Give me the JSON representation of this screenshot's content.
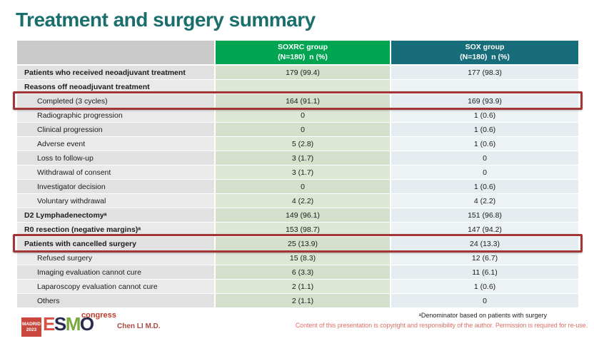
{
  "slide": {
    "title": "Treatment and surgery summary",
    "footer": {
      "presenter": "Chen LI M.D.",
      "footnote": "ᵃDenominator based on patients with surgery",
      "copyright": "Content of this presentation is copyright and responsibility of the author. Permission is required for re-use.",
      "logo": {
        "badge_line1": "MADRID",
        "badge_line2": "2023",
        "letters": [
          "E",
          "S",
          "M",
          "O"
        ],
        "congress": "congress"
      }
    }
  },
  "colors": {
    "title_teal": "#1a6e6b",
    "soxrc_header_green": "#00a551",
    "sox_header_teal": "#186d7b",
    "highlight_red": "#a23636",
    "soxrc_cell_green": "#d4e0cb",
    "sox_cell_blue": "#e5edf0"
  },
  "table": {
    "columns": [
      {
        "line1": "",
        "line2": ""
      },
      {
        "line1": "SOXRC group",
        "line2": "(N=180)  n (%)"
      },
      {
        "line1": "SOX group",
        "line2": "(N=180)  n (%)"
      }
    ],
    "rows": [
      {
        "label": "Patients who received neoadjuvant treatment",
        "soxrc": "179 (99.4)",
        "sox": "177 (98.3)",
        "bold": true,
        "indent": false,
        "highlight": false
      },
      {
        "label": "Reasons off neoadjuvant treatment",
        "soxrc": "",
        "sox": "",
        "bold": true,
        "indent": false,
        "highlight": false
      },
      {
        "label": "Completed (3 cycles)",
        "soxrc": "164 (91.1)",
        "sox": "169 (93.9)",
        "bold": false,
        "indent": true,
        "highlight": true
      },
      {
        "label": "Radiographic progression",
        "soxrc": "0",
        "sox": "1 (0.6)",
        "bold": false,
        "indent": true,
        "highlight": false
      },
      {
        "label": "Clinical progression",
        "soxrc": "0",
        "sox": "1 (0.6)",
        "bold": false,
        "indent": true,
        "highlight": false
      },
      {
        "label": "Adverse event",
        "soxrc": "5 (2.8)",
        "sox": "1 (0.6)",
        "bold": false,
        "indent": true,
        "highlight": false
      },
      {
        "label": "Loss to follow-up",
        "soxrc": "3 (1.7)",
        "sox": "0",
        "bold": false,
        "indent": true,
        "highlight": false
      },
      {
        "label": "Withdrawal of consent",
        "soxrc": "3 (1.7)",
        "sox": "0",
        "bold": false,
        "indent": true,
        "highlight": false
      },
      {
        "label": "Investigator decision",
        "soxrc": "0",
        "sox": "1 (0.6)",
        "bold": false,
        "indent": true,
        "highlight": false
      },
      {
        "label": "Voluntary withdrawal",
        "soxrc": "4 (2.2)",
        "sox": "4 (2.2)",
        "bold": false,
        "indent": true,
        "highlight": false
      },
      {
        "label": "D2 Lymphadenectomyᵃ",
        "soxrc": "149 (96.1)",
        "sox": "151 (96.8)",
        "bold": true,
        "indent": false,
        "highlight": false
      },
      {
        "label": "R0 resection (negative margins)ᵃ",
        "soxrc": "153 (98.7)",
        "sox": "147 (94.2)",
        "bold": true,
        "indent": false,
        "highlight": false
      },
      {
        "label": "Patients with cancelled surgery",
        "soxrc": "25 (13.9)",
        "sox": "24 (13.3)",
        "bold": true,
        "indent": false,
        "highlight": true
      },
      {
        "label": "Refused surgery",
        "soxrc": "15 (8.3)",
        "sox": "12 (6.7)",
        "bold": false,
        "indent": true,
        "highlight": false
      },
      {
        "label": "Imaging evaluation cannot cure",
        "soxrc": "6 (3.3)",
        "sox": "11 (6.1)",
        "bold": false,
        "indent": true,
        "highlight": false
      },
      {
        "label": "Laparoscopy evaluation cannot cure",
        "soxrc": "2 (1.1)",
        "sox": "1 (0.6)",
        "bold": false,
        "indent": true,
        "highlight": false
      },
      {
        "label": "Others",
        "soxrc": "2 (1.1)",
        "sox": "0",
        "bold": false,
        "indent": true,
        "highlight": false
      }
    ]
  }
}
